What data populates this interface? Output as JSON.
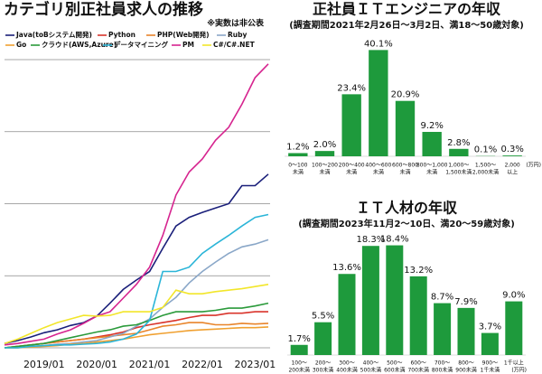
{
  "chart_data": [
    {
      "type": "line",
      "title": "カテゴリ別正社員求人の推移",
      "subtitle": "※実数は非公表",
      "categories": [
        null,
        null,
        null,
        "2019/01",
        null,
        null,
        null,
        "2020/01",
        null,
        null,
        null,
        "2021/01",
        null,
        null,
        null,
        "2022/01",
        null,
        null,
        null,
        "2023/01",
        null
      ],
      "ylim": [
        0,
        4.1
      ],
      "yticks": [
        0,
        1,
        2,
        3,
        4
      ],
      "grid": true,
      "series": [
        {
          "name": "Java(toBシステム開発)",
          "color": "#1a1f7a",
          "values": [
            0.06,
            0.1,
            0.15,
            0.21,
            0.25,
            0.31,
            0.35,
            0.44,
            0.62,
            0.81,
            0.94,
            1.06,
            1.38,
            1.69,
            1.81,
            1.88,
            1.94,
            2.0,
            2.25,
            2.25,
            2.41
          ]
        },
        {
          "name": "Python",
          "color": "#d9342b",
          "values": [
            0,
            0.02,
            0.04,
            0.06,
            0.08,
            0.1,
            0.12,
            0.15,
            0.18,
            0.22,
            0.28,
            0.32,
            0.35,
            0.38,
            0.42,
            0.45,
            0.45,
            0.48,
            0.48,
            0.5,
            0.5
          ]
        },
        {
          "name": "PHP(Web開発)",
          "color": "#e8842a",
          "values": [
            0,
            0.02,
            0.04,
            0.06,
            0.08,
            0.1,
            0.12,
            0.14,
            0.16,
            0.18,
            0.2,
            0.25,
            0.3,
            0.32,
            0.35,
            0.35,
            0.32,
            0.32,
            0.34,
            0.33,
            0.34
          ]
        },
        {
          "name": "Ruby",
          "color": "#8aa7c8",
          "values": [
            0,
            0,
            0.02,
            0.03,
            0.05,
            0.06,
            0.08,
            0.1,
            0.15,
            0.2,
            0.3,
            0.4,
            0.56,
            0.7,
            0.9,
            1.06,
            1.19,
            1.31,
            1.4,
            1.44,
            1.5
          ]
        },
        {
          "name": "Go",
          "color": "#f0a030",
          "values": [
            0,
            0,
            0.01,
            0.02,
            0.03,
            0.05,
            0.06,
            0.08,
            0.1,
            0.12,
            0.15,
            0.18,
            0.2,
            0.22,
            0.24,
            0.25,
            0.26,
            0.27,
            0.28,
            0.28,
            0.29
          ]
        },
        {
          "name": "クラウド(AWS,Azure)",
          "color": "#2a9a3a",
          "values": [
            0,
            0.02,
            0.04,
            0.06,
            0.1,
            0.14,
            0.18,
            0.22,
            0.25,
            0.3,
            0.32,
            0.38,
            0.45,
            0.5,
            0.5,
            0.5,
            0.52,
            0.55,
            0.55,
            0.58,
            0.62
          ]
        },
        {
          "name": "データマイニング",
          "color": "#2bb5d8",
          "values": [
            0,
            0,
            0.02,
            0.03,
            0.04,
            0.04,
            0.05,
            0.06,
            0.08,
            0.12,
            0.19,
            0.38,
            1.06,
            1.06,
            1.12,
            1.31,
            1.44,
            1.56,
            1.69,
            1.81,
            1.85
          ]
        },
        {
          "name": "PM",
          "color": "#d6248f",
          "values": [
            0.04,
            0.06,
            0.09,
            0.12,
            0.19,
            0.25,
            0.34,
            0.44,
            0.5,
            0.69,
            0.88,
            1.12,
            1.56,
            2.12,
            2.44,
            2.62,
            2.88,
            3.06,
            3.38,
            3.75,
            3.94
          ]
        },
        {
          "name": "C#/C#.NET",
          "color": "#f2e62a",
          "values": [
            0.06,
            0.12,
            0.2,
            0.28,
            0.35,
            0.4,
            0.45,
            0.44,
            0.45,
            0.5,
            0.5,
            0.5,
            0.56,
            0.8,
            0.75,
            0.75,
            0.78,
            0.8,
            0.82,
            0.85,
            0.88
          ]
        }
      ]
    },
    {
      "type": "bar",
      "title": "正社員ＩＴエンジニアの年収",
      "subtitle": "(調査期間2021年2月26日～3月2日、満18～50歳対象)",
      "categories": [
        [
          "0～100",
          "未満"
        ],
        [
          "100～200",
          "未満"
        ],
        [
          "200～400",
          "未満"
        ],
        [
          "400～600",
          "未満"
        ],
        [
          "600～800",
          "未満"
        ],
        [
          "800～1,000",
          "未満"
        ],
        [
          "1,000～",
          "1,500未満"
        ],
        [
          "1,500～",
          "2,000未満"
        ],
        [
          "2,000",
          "以上"
        ]
      ],
      "unit": "(万円)",
      "color": "#1e9a3c",
      "ylim": [
        0,
        45
      ],
      "values": [
        1.2,
        2.0,
        23.4,
        40.1,
        20.9,
        9.2,
        2.8,
        0.1,
        0.3
      ],
      "value_labels": [
        "1.2%",
        "2.0%",
        "23.4%",
        "40.1%",
        "20.9%",
        "9.2%",
        "2.8%",
        "0.1%",
        "0.3%"
      ]
    },
    {
      "type": "bar",
      "title": "ＩＴ人材の年収",
      "subtitle": "(調査期間2023年11月2～10日、満20～59歳対象)",
      "categories": [
        [
          "100～",
          "200未満"
        ],
        [
          "200～",
          "300未満"
        ],
        [
          "300～",
          "400未満"
        ],
        [
          "400～",
          "500未満"
        ],
        [
          "500～",
          "600未満"
        ],
        [
          "600～",
          "700未満"
        ],
        [
          "700～",
          "800未満"
        ],
        [
          "800～",
          "900未満"
        ],
        [
          "900～",
          "1千未満"
        ],
        [
          "1千以上"
        ]
      ],
      "unit": "(万円)",
      "color": "#1e9a3c",
      "ylim": [
        0,
        20
      ],
      "values": [
        1.7,
        5.5,
        13.6,
        18.3,
        18.4,
        13.2,
        8.7,
        7.9,
        3.7,
        9.0
      ],
      "value_labels": [
        "1.7%",
        "5.5%",
        "13.6%",
        "18.3%",
        "18.4%",
        "13.2%",
        "8.7%",
        "7.9%",
        "3.7%",
        "9.0%"
      ]
    }
  ]
}
